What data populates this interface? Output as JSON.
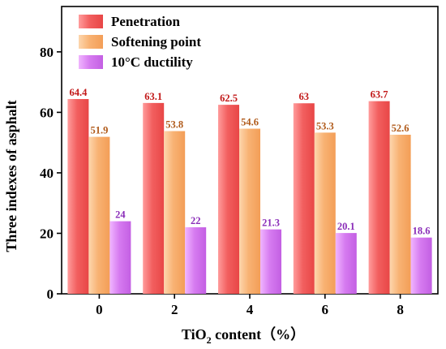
{
  "chart_data": {
    "type": "bar",
    "categories": [
      "0",
      "2",
      "4",
      "6",
      "8"
    ],
    "series": [
      {
        "name": "Penetration",
        "values": [
          64.4,
          63.1,
          62.5,
          63,
          63.7
        ],
        "labels": [
          "64.4",
          "63.1",
          "62.5",
          "63",
          "63.7"
        ],
        "color": "#f25f5f",
        "label_color": "#c21818"
      },
      {
        "name": "Softening point",
        "values": [
          51.9,
          53.8,
          54.6,
          53.3,
          52.6
        ],
        "labels": [
          "51.9",
          "53.8",
          "54.6",
          "53.3",
          "52.6"
        ],
        "color": "#f8b273",
        "label_color": "#b05a1a"
      },
      {
        "name": "10°C ductility",
        "values": [
          24,
          22,
          21.3,
          20.1,
          18.6
        ],
        "labels": [
          "24",
          "22",
          "21.3",
          "20.1",
          "18.6"
        ],
        "color": "#d67bf0",
        "label_color": "#8a2cb8"
      }
    ],
    "xlabel_main": "TiO",
    "xlabel_sub": "2",
    "xlabel_rest": " content（%）",
    "ylabel": "Three indexes of asphalt",
    "ylim": [
      0,
      95
    ],
    "yticks": [
      0,
      20,
      40,
      60,
      80
    ],
    "grid": false,
    "legend_position": "top-left"
  }
}
